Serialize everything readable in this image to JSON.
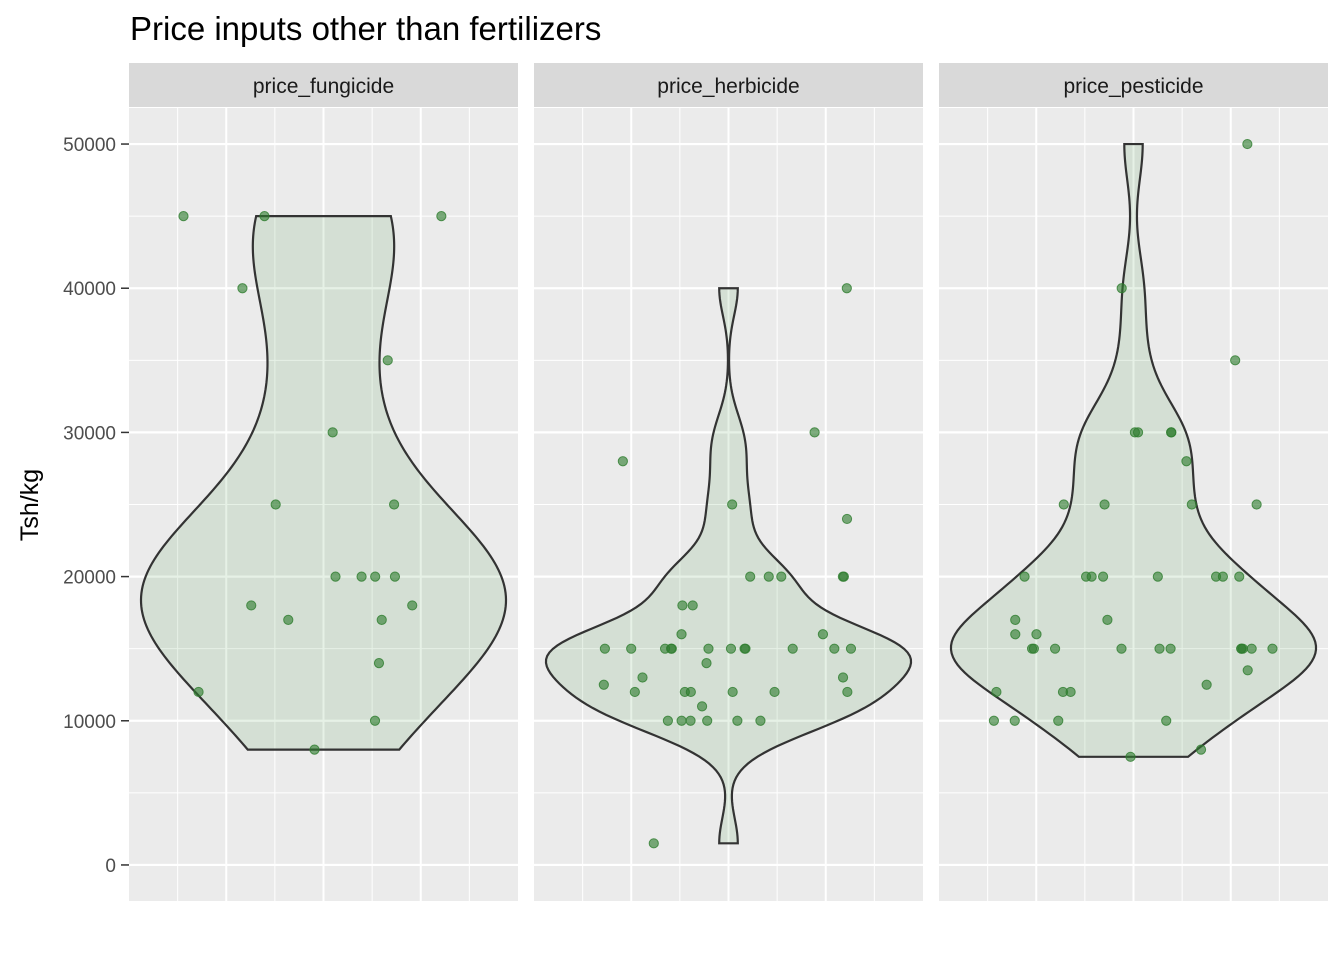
{
  "chart_data": {
    "type": "violin",
    "title": "Price inputs other than fertilizers",
    "xlabel": "",
    "ylabel": "Tsh/kg",
    "ylim": [
      -2500,
      52500
    ],
    "yticks": [
      0,
      10000,
      20000,
      30000,
      40000,
      50000
    ],
    "grid": true,
    "legend": "none",
    "colors": {
      "panel_bg": "#ebebeb",
      "strip_bg": "#d9d9d9",
      "grid": "#ffffff",
      "violin_fill": "#2e8b2e",
      "violin_line": "#333333",
      "point": "#2e7d2e"
    },
    "facets": [
      {
        "name": "price_fungicide",
        "values": [
          45000,
          45000,
          45000,
          40000,
          35000,
          30000,
          25000,
          25000,
          20000,
          20000,
          20000,
          20000,
          18000,
          18000,
          17000,
          17000,
          14000,
          12000,
          10000,
          8000
        ]
      },
      {
        "name": "price_herbicide",
        "values": [
          40000,
          30000,
          28000,
          25000,
          24000,
          20000,
          20000,
          20000,
          20000,
          20000,
          18000,
          18000,
          16000,
          16000,
          15000,
          15000,
          15000,
          15000,
          15000,
          15000,
          15000,
          15000,
          15000,
          15000,
          15000,
          15000,
          14000,
          13000,
          13000,
          12500,
          12000,
          12000,
          12000,
          12000,
          12000,
          12000,
          11000,
          10000,
          10000,
          10000,
          10000,
          10000,
          10000,
          1500
        ]
      },
      {
        "name": "price_pesticide",
        "values": [
          50000,
          40000,
          35000,
          30000,
          30000,
          30000,
          30000,
          28000,
          25000,
          25000,
          25000,
          25000,
          20000,
          20000,
          20000,
          20000,
          20000,
          20000,
          20000,
          20000,
          17000,
          17000,
          16000,
          16000,
          15000,
          15000,
          15000,
          15000,
          15000,
          15000,
          15000,
          15000,
          15000,
          15000,
          15000,
          13500,
          12500,
          12000,
          12000,
          12000,
          10000,
          10000,
          10000,
          10000,
          8000,
          7500
        ]
      }
    ]
  }
}
